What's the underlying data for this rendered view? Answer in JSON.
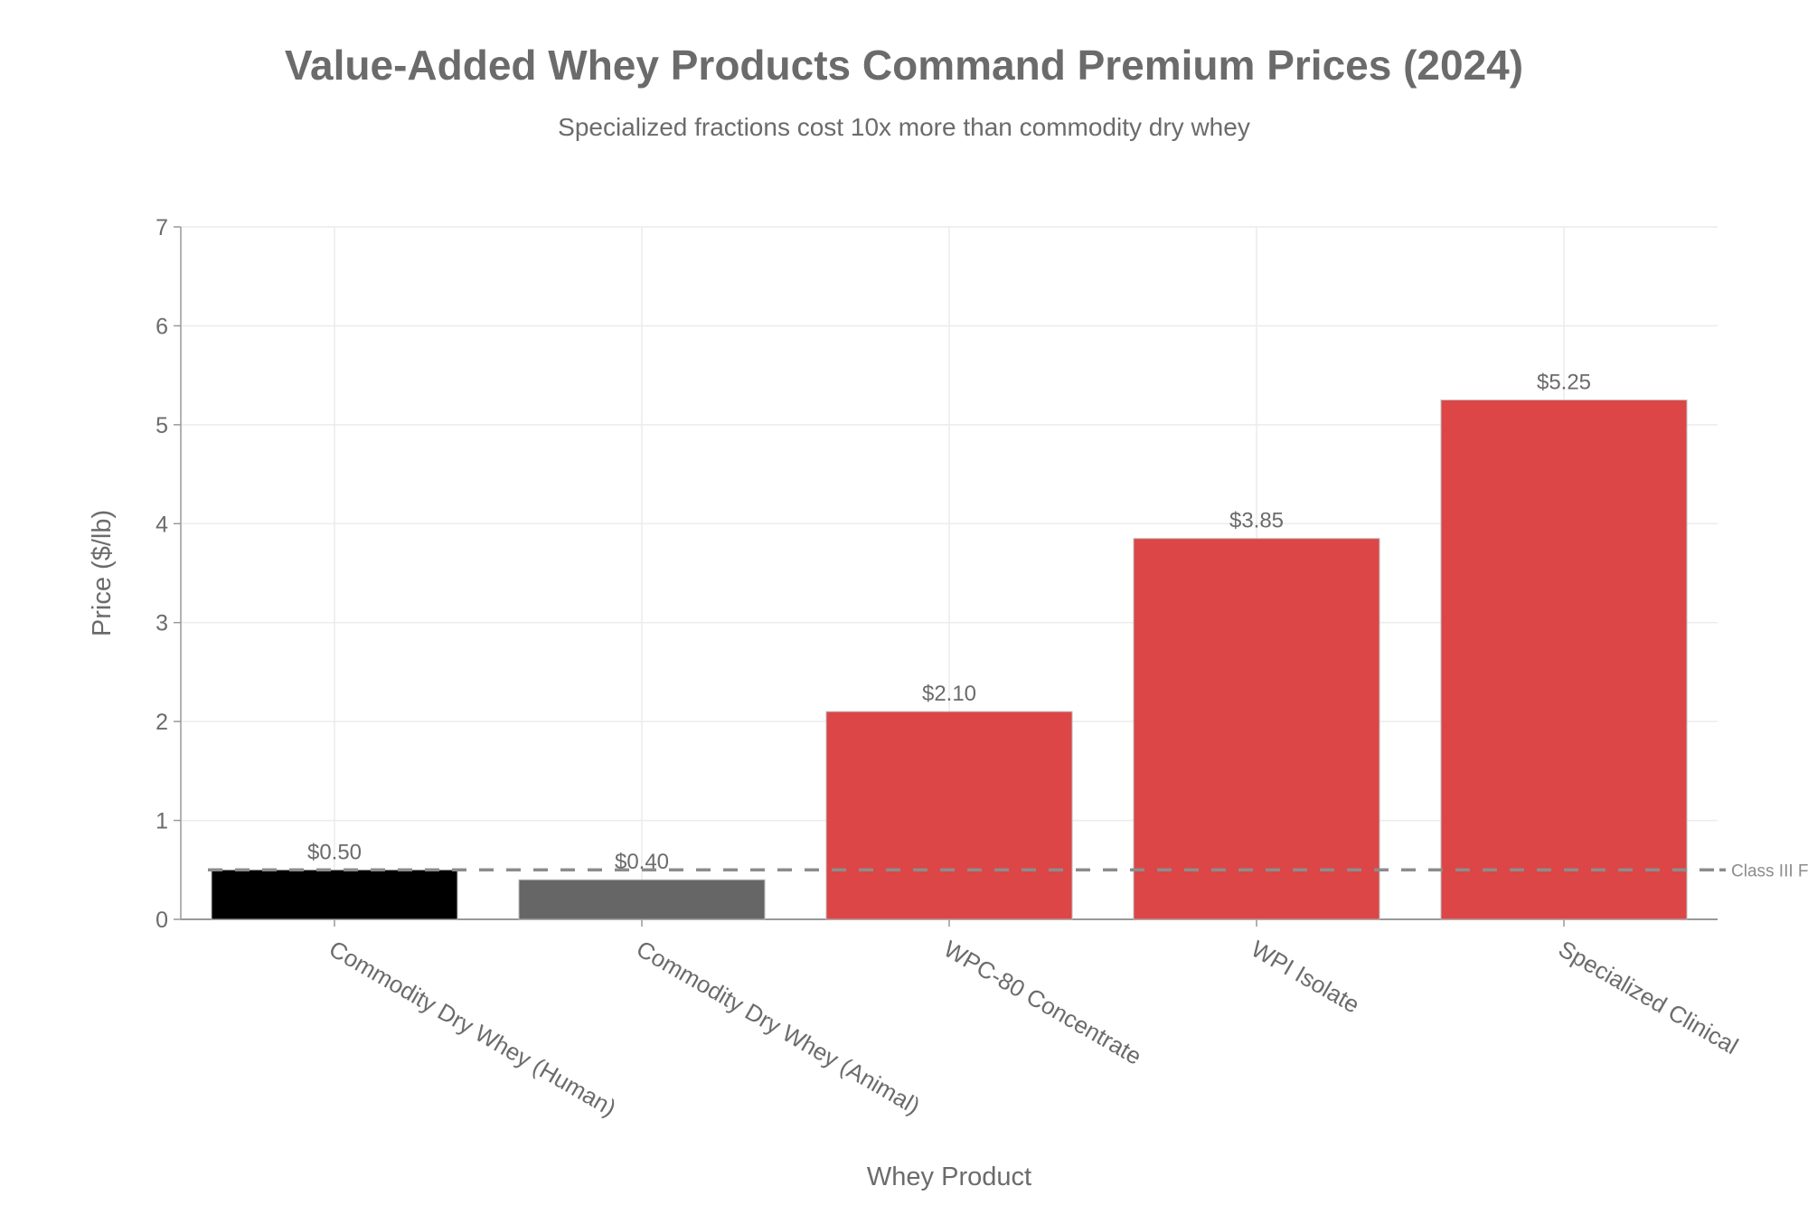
{
  "chart_data": {
    "type": "bar",
    "title": "Value-Added Whey Products Command Premium Prices (2024)",
    "subtitle": "Specialized fractions cost 10x more than commodity dry whey",
    "xlabel": "Whey Product",
    "ylabel": "Price ($/lb)",
    "ylim": [
      0,
      7
    ],
    "yticks": [
      0,
      1,
      2,
      3,
      4,
      5,
      6,
      7
    ],
    "grid": true,
    "categories": [
      "Commodity Dry Whey (Human)",
      "Commodity Dry Whey (Animal)",
      "WPC-80 Concentrate",
      "WPI Isolate",
      "Specialized Clinical"
    ],
    "values": [
      0.5,
      0.4,
      2.1,
      3.85,
      5.25
    ],
    "data_labels": [
      "$0.50",
      "$0.40",
      "$2.10",
      "$3.85",
      "$5.25"
    ],
    "colors": [
      "#000000",
      "#666666",
      "#dc4646",
      "#dc4646",
      "#dc4646"
    ],
    "reference_line": {
      "value": 0.5,
      "label": "Class III Fo",
      "color": "#8c8c8c"
    }
  }
}
